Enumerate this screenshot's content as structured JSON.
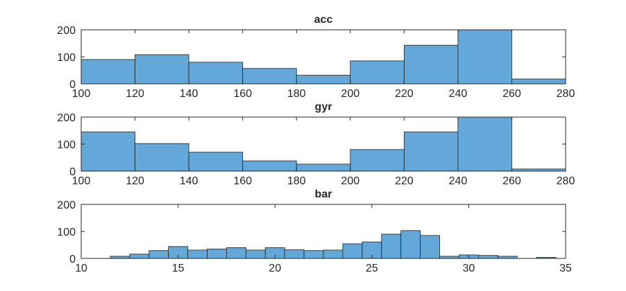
{
  "colors": {
    "bar_fill": "#63a8d8",
    "bar_edge": "#1f1f1f",
    "axis": "#262626",
    "background": "#ffffff"
  },
  "chart_data": [
    {
      "type": "bar",
      "subtype": "histogram",
      "title": "acc",
      "xlabel": "",
      "ylabel": "",
      "bin_edges": [
        100,
        120,
        140,
        160,
        180,
        200,
        220,
        240,
        260,
        280
      ],
      "values": [
        90,
        108,
        80,
        57,
        32,
        85,
        143,
        200,
        18
      ],
      "xlim": [
        100,
        280
      ],
      "ylim": [
        0,
        200
      ],
      "xticks": [
        100,
        120,
        140,
        160,
        180,
        200,
        220,
        240,
        260,
        280
      ],
      "yticks": [
        0,
        100,
        200
      ],
      "grid": false,
      "legend": "none"
    },
    {
      "type": "bar",
      "subtype": "histogram",
      "title": "gyr",
      "xlabel": "",
      "ylabel": "",
      "bin_edges": [
        100,
        120,
        140,
        160,
        180,
        200,
        220,
        240,
        260,
        280
      ],
      "values": [
        145,
        102,
        70,
        38,
        26,
        80,
        145,
        200,
        8
      ],
      "xlim": [
        100,
        280
      ],
      "ylim": [
        0,
        200
      ],
      "xticks": [
        100,
        120,
        140,
        160,
        180,
        200,
        220,
        240,
        260,
        280
      ],
      "yticks": [
        0,
        100,
        200
      ],
      "grid": false,
      "legend": "none"
    },
    {
      "type": "bar",
      "subtype": "histogram",
      "title": "bar",
      "xlabel": "",
      "ylabel": "",
      "bin_edges": [
        11.5,
        12.5,
        13.5,
        14.5,
        15.5,
        16.5,
        17.5,
        18.5,
        19.5,
        20.5,
        21.5,
        22.5,
        23.5,
        24.5,
        25.5,
        26.5,
        27.5,
        28.5,
        29.5,
        30.5,
        31.5,
        32.5,
        33.5,
        34.5
      ],
      "values": [
        8,
        16,
        29,
        44,
        31,
        35,
        40,
        31,
        40,
        32,
        29,
        31,
        54,
        61,
        90,
        103,
        85,
        8,
        13,
        11,
        8,
        0,
        4
      ],
      "xlim": [
        10,
        35
      ],
      "ylim": [
        0,
        200
      ],
      "xticks": [
        10,
        15,
        20,
        25,
        30,
        35
      ],
      "yticks": [
        0,
        100,
        200
      ],
      "grid": false,
      "legend": "none"
    }
  ]
}
